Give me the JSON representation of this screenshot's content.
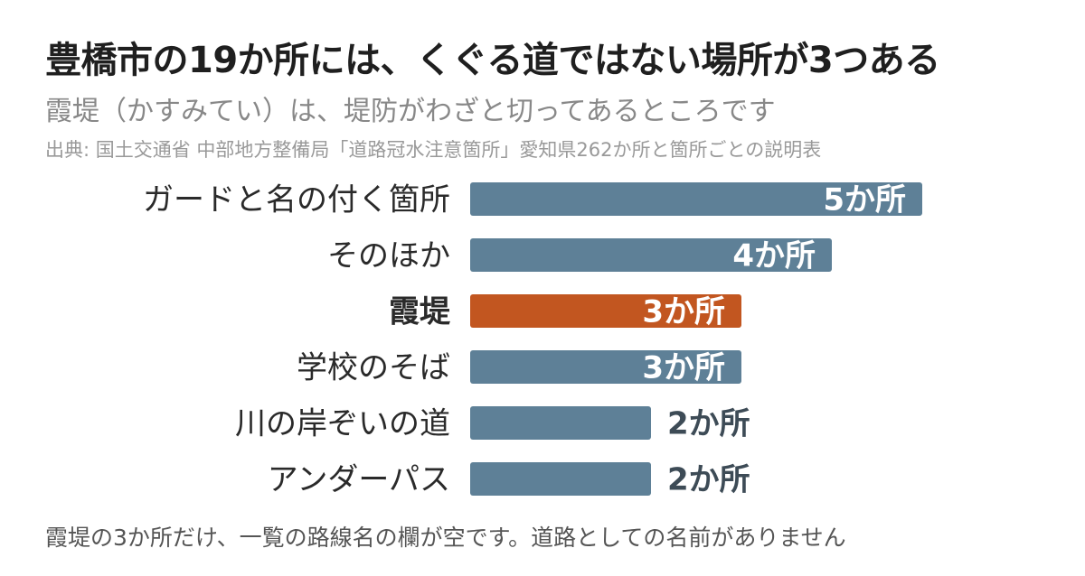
{
  "header": {
    "title": "豊橋市の19か所には、くぐる道ではない場所が3つある",
    "subtitle": "霞堤（かすみてい）は、堤防がわざと切ってあるところです",
    "source": "出典: 国土交通省 中部地方整備局「道路冠水注意箇所」愛知県262か所と箇所ごとの説明表"
  },
  "footnote": "霞堤の3か所だけ、一覧の路線名の欄が空です。道路としての名前がありません",
  "colors": {
    "bar_default": "#5e8097",
    "bar_highlight": "#c25620",
    "label_inside": "#ffffff",
    "label_outside": "#3d4b56",
    "category_text": "#2a2a2a"
  },
  "chart_data": {
    "type": "bar",
    "orientation": "horizontal",
    "categories": [
      "ガードと名の付く箇所",
      "そのほか",
      "霞堤",
      "学校のそば",
      "川の岸ぞいの道",
      "アンダーパス"
    ],
    "values": [
      5,
      4,
      3,
      3,
      2,
      2
    ],
    "value_labels": [
      "5か所",
      "4か所",
      "3か所",
      "3か所",
      "2か所",
      "2か所"
    ],
    "highlight": "霞堤",
    "xlim": [
      0,
      5
    ],
    "grid": false,
    "legend": "none"
  }
}
